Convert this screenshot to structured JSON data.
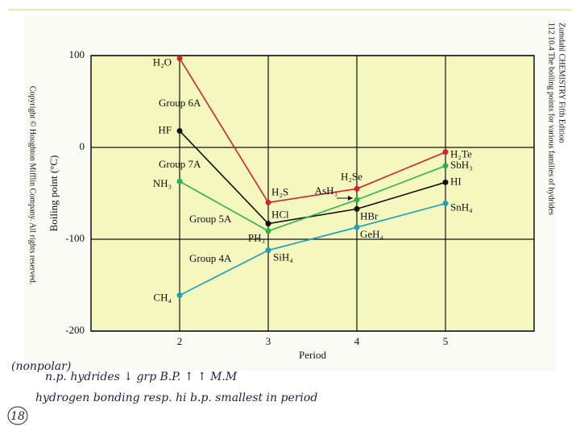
{
  "chart_data": {
    "type": "line",
    "y_label": "Boiling point (°C)",
    "x_label": "Period",
    "x": [
      2,
      3,
      4,
      5
    ],
    "xlim": [
      1,
      6
    ],
    "xticks": [
      2,
      3,
      4,
      5
    ],
    "ylim": [
      -200,
      100
    ],
    "yticks": [
      -200,
      -100,
      0,
      100
    ],
    "grid": true,
    "series": [
      {
        "name": "Group 6A",
        "color": "#d42030",
        "values": [
          97,
          -60,
          -45,
          -5
        ],
        "point_labels": [
          "H₂O",
          "H₂S",
          "H₂Se",
          "H₂Te"
        ]
      },
      {
        "name": "Group 7A",
        "color": "#111111",
        "values": [
          18,
          -83,
          -67,
          -38
        ],
        "point_labels": [
          "HF",
          "HCl",
          "HBr",
          "HI"
        ]
      },
      {
        "name": "Group 5A",
        "color": "#2db34a",
        "values": [
          -37,
          -91,
          -57,
          -20
        ],
        "point_labels": [
          "NH₃",
          "PH₃",
          "AsH₃",
          "SbH₃"
        ]
      },
      {
        "name": "Group 4A",
        "color": "#1aa0b8",
        "values": [
          -161,
          -112,
          -87,
          -61
        ],
        "point_labels": [
          "CH₄",
          "SiH₄",
          "GeH₄",
          "SnH₄"
        ]
      }
    ],
    "copyright": "Copyright © Houghton Mifflin Company. All rights reserved.",
    "book_line_1": "Zumdahl   CHEMISTRY   Fifth Edition",
    "book_line_2": "112   10.4   The boiling points for various families of hydrides",
    "handwriting": [
      "(nonpolar)",
      "n.p. hydrides ↓ grp   B.P. ↑ ↑ M.M",
      "hydrogen bonding resp. hi b.p. smallest in period",
      "18"
    ]
  }
}
